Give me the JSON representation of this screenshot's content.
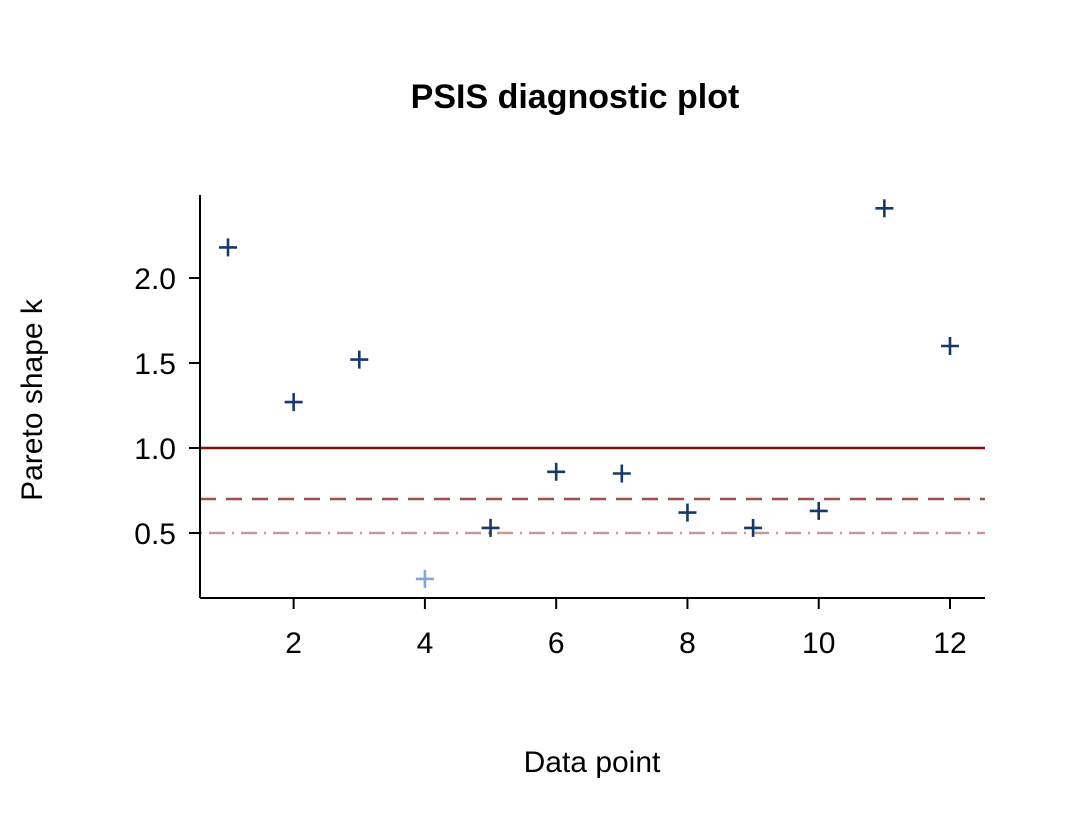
{
  "chart_data": {
    "type": "scatter",
    "title": "PSIS diagnostic plot",
    "xlabel": "Data point",
    "ylabel": "Pareto shape k",
    "marker": "plus",
    "x": [
      1,
      2,
      3,
      4,
      5,
      6,
      7,
      8,
      9,
      10,
      11,
      12
    ],
    "y": [
      2.18,
      1.27,
      1.52,
      0.23,
      0.53,
      0.86,
      0.85,
      0.62,
      0.53,
      0.63,
      2.41,
      1.6
    ],
    "x_ticks": [
      "2",
      "4",
      "6",
      "8",
      "10",
      "12"
    ],
    "x_tick_values": [
      2,
      4,
      6,
      8,
      10,
      12
    ],
    "y_ticks": [
      "0.5",
      "1.0",
      "1.5",
      "2.0"
    ],
    "y_tick_values": [
      0.5,
      1.0,
      1.5,
      2.0
    ],
    "xlim": [
      0.56,
      12.44
    ],
    "ylim": [
      0.15,
      2.49
    ],
    "grid": "off",
    "legend": "none",
    "reference_lines": [
      {
        "k": 1.0,
        "style": "solid",
        "color": "#7f1010"
      },
      {
        "k": 0.7,
        "style": "dashed",
        "color": "#9b4f4f"
      },
      {
        "k": 0.5,
        "style": "dashdot",
        "color": "#c79b9b"
      }
    ],
    "point_color": "#16396b",
    "point_color_below_05": "#80a8d4",
    "axis_color": "#000000"
  }
}
